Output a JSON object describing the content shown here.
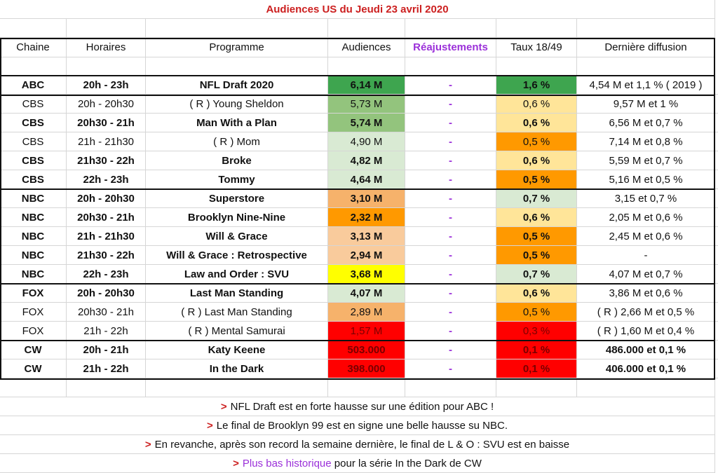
{
  "title": "Audiences US du Jeudi 23 avril 2020",
  "headers": {
    "chaine": "Chaine",
    "horaires": "Horaires",
    "programme": "Programme",
    "audiences": "Audiences",
    "reajustements": "Réajustements",
    "taux": "Taux 18/49",
    "derniere": "Dernière diffusion"
  },
  "colors": {
    "dark_green": "#3ea54f",
    "green": "#93c47d",
    "pale_green": "#d9ead3",
    "pale_yellow": "#ffe599",
    "orange": "#ff9900",
    "light_orange": "#f6b26b",
    "pale_orange": "#f9cb9c",
    "yellow": "#ffff00",
    "red": "#ff0000"
  },
  "rows": [
    {
      "chaine": "ABC",
      "horaires": "20h - 23h",
      "programme": "NFL Draft 2020",
      "audiences": "6,14 M",
      "reaj": "-",
      "taux": "1,6 %",
      "derniere": "4,54 M et 1,1 % ( 2019 )",
      "bold": true,
      "aud_color": "dark_green",
      "taux_color": "dark_green"
    },
    {
      "chaine": "CBS",
      "horaires": "20h - 20h30",
      "programme": "( R ) Young Sheldon",
      "audiences": "5,73 M",
      "reaj": "-",
      "taux": "0,6 %",
      "derniere": "9,57 M et 1 %",
      "bold": false,
      "aud_color": "green",
      "taux_color": "pale_yellow"
    },
    {
      "chaine": "CBS",
      "horaires": "20h30 - 21h",
      "programme": "Man With a Plan",
      "audiences": "5,74 M",
      "reaj": "-",
      "taux": "0,6 %",
      "derniere": "6,56 M et 0,7 %",
      "bold": true,
      "aud_color": "green",
      "taux_color": "pale_yellow"
    },
    {
      "chaine": "CBS",
      "horaires": "21h - 21h30",
      "programme": "( R ) Mom",
      "audiences": "4,90 M",
      "reaj": "-",
      "taux": "0,5 %",
      "derniere": "7,14 M et 0,8 %",
      "bold": false,
      "aud_color": "pale_green",
      "taux_color": "orange"
    },
    {
      "chaine": "CBS",
      "horaires": "21h30 - 22h",
      "programme": "Broke",
      "audiences": "4,82 M",
      "reaj": "-",
      "taux": "0,6 %",
      "derniere": "5,59 M et 0,7 %",
      "bold": true,
      "aud_color": "pale_green",
      "taux_color": "pale_yellow"
    },
    {
      "chaine": "CBS",
      "horaires": "22h - 23h",
      "programme": "Tommy",
      "audiences": "4,64 M",
      "reaj": "-",
      "taux": "0,5 %",
      "derniere": "5,16 M et 0,5 %",
      "bold": true,
      "aud_color": "pale_green",
      "taux_color": "orange"
    },
    {
      "chaine": "NBC",
      "horaires": "20h - 20h30",
      "programme": "Superstore",
      "audiences": "3,10 M",
      "reaj": "-",
      "taux": "0,7 %",
      "derniere": "3,15 et 0,7 %",
      "bold": true,
      "aud_color": "light_orange",
      "taux_color": "pale_green"
    },
    {
      "chaine": "NBC",
      "horaires": "20h30 - 21h",
      "programme": "Brooklyn Nine-Nine",
      "audiences": "2,32 M",
      "reaj": "-",
      "taux": "0,6 %",
      "derniere": "2,05 M et 0,6 %",
      "bold": true,
      "aud_color": "orange",
      "taux_color": "pale_yellow"
    },
    {
      "chaine": "NBC",
      "horaires": "21h - 21h30",
      "programme": "Will & Grace",
      "audiences": "3,13 M",
      "reaj": "-",
      "taux": "0,5 %",
      "derniere": "2,45 M et 0,6 %",
      "bold": true,
      "aud_color": "pale_orange",
      "taux_color": "orange"
    },
    {
      "chaine": "NBC",
      "horaires": "21h30 - 22h",
      "programme": "Will & Grace : Retrospective",
      "audiences": "2,94 M",
      "reaj": "-",
      "taux": "0,5 %",
      "derniere": "-",
      "bold": true,
      "aud_color": "pale_orange",
      "taux_color": "orange"
    },
    {
      "chaine": "NBC",
      "horaires": "22h - 23h",
      "programme": "Law and Order : SVU",
      "audiences": "3,68 M",
      "reaj": "-",
      "taux": "0,7 %",
      "derniere": "4,07 M et 0,7 %",
      "bold": true,
      "aud_color": "yellow",
      "taux_color": "pale_green"
    },
    {
      "chaine": "FOX",
      "horaires": "20h - 20h30",
      "programme": "Last Man Standing",
      "audiences": "4,07 M",
      "reaj": "-",
      "taux": "0,6 %",
      "derniere": "3,86 M et 0,6 %",
      "bold": true,
      "aud_color": "pale_green",
      "taux_color": "pale_yellow"
    },
    {
      "chaine": "FOX",
      "horaires": "20h30 - 21h",
      "programme": "( R ) Last Man Standing",
      "audiences": "2,89 M",
      "reaj": "-",
      "taux": "0,5 %",
      "derniere": "( R ) 2,66 M et 0,5 %",
      "bold": false,
      "aud_color": "light_orange",
      "taux_color": "orange"
    },
    {
      "chaine": "FOX",
      "horaires": "21h - 22h",
      "programme": "( R ) Mental Samurai",
      "audiences": "1,57 M",
      "reaj": "-",
      "taux": "0,3 %",
      "derniere": "( R ) 1,60 M et 0,4 %",
      "bold": false,
      "aud_color": "red",
      "taux_color": "red"
    },
    {
      "chaine": "CW",
      "horaires": "20h - 21h",
      "programme": "Katy Keene",
      "audiences": "503.000",
      "reaj": "-",
      "taux": "0,1 %",
      "derniere": "486.000 et 0,1 %",
      "bold": true,
      "last_bold": true,
      "aud_color": "red",
      "taux_color": "red"
    },
    {
      "chaine": "CW",
      "horaires": "21h - 22h",
      "programme": "In the Dark",
      "audiences": "398.000",
      "reaj": "-",
      "taux": "0,1 %",
      "derniere": "406.000 et 0,1 %",
      "bold": true,
      "last_bold": true,
      "aud_color": "red",
      "taux_color": "red"
    }
  ],
  "notes": [
    {
      "arrow": ">",
      "highlight": "",
      "text": "NFL Draft est en forte hausse sur une édition pour ABC !"
    },
    {
      "arrow": ">",
      "highlight": "",
      "text": "Le final de Brooklyn 99 est en signe une belle hausse su NBC."
    },
    {
      "arrow": ">",
      "highlight": "",
      "text": "En revanche, après son record la semaine dernière, le final de L & O : SVU est en baisse"
    },
    {
      "arrow": ">",
      "highlight": "Plus bas historique",
      "text": " pour la série In the Dark de CW"
    }
  ]
}
